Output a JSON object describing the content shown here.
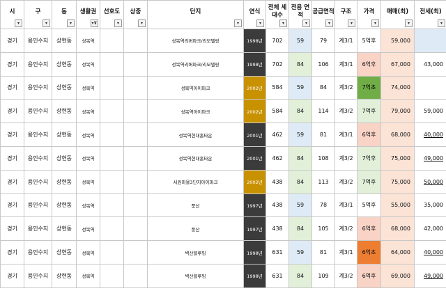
{
  "headers": [
    {
      "label": "시"
    },
    {
      "label": "구"
    },
    {
      "label": "동"
    },
    {
      "label": "생활권"
    },
    {
      "label": "선호도"
    },
    {
      "label": "상중"
    },
    {
      "label": "단지"
    },
    {
      "label": "연식"
    },
    {
      "label": "전체 세대수"
    },
    {
      "label": "전용 면적"
    },
    {
      "label": "공급면적"
    },
    {
      "label": "구조"
    },
    {
      "label": "가격"
    },
    {
      "label": "매매(최)"
    },
    {
      "label": "전세(최)"
    }
  ],
  "filter_icons": {
    "default": "▾",
    "active": "▾⊽"
  },
  "rows": [
    {
      "si": "경기",
      "gu": "용인수지",
      "dong": "상현동",
      "area": "성복역",
      "pref": "",
      "sang": "",
      "complex": "성복역리버파크/리모델링",
      "year": "1998년",
      "year_style": "d",
      "units": "702",
      "excl": "59",
      "excl_style": "b",
      "supply": "79",
      "struct": "계3/1",
      "price": "5억후",
      "price_style": "w",
      "sale": "59,000",
      "jeonse": "",
      "jeonse_style": "b",
      "jeonse_ul": false
    },
    {
      "si": "경기",
      "gu": "용인수지",
      "dong": "상현동",
      "area": "성복역",
      "pref": "",
      "sang": "",
      "complex": "성복역리버파크/리모델링",
      "year": "1998년",
      "year_style": "d",
      "units": "702",
      "excl": "84",
      "excl_style": "g",
      "supply": "106",
      "struct": "계3/1",
      "price": "6억후",
      "price_style": "r",
      "sale": "67,000",
      "jeonse": "43,000",
      "jeonse_style": "n",
      "jeonse_ul": false
    },
    {
      "si": "경기",
      "gu": "용인수지",
      "dong": "상현동",
      "area": "성복역",
      "pref": "",
      "sang": "",
      "complex": "성복역아이파크",
      "year": "2002년",
      "year_style": "g",
      "units": "584",
      "excl": "59",
      "excl_style": "b",
      "supply": "84",
      "struct": "계3/2",
      "price": "7억초",
      "price_style": "gd",
      "sale": "74,000",
      "jeonse": "",
      "jeonse_style": "n",
      "jeonse_ul": false
    },
    {
      "si": "경기",
      "gu": "용인수지",
      "dong": "상현동",
      "area": "성복역",
      "pref": "",
      "sang": "",
      "complex": "성복역아이파크",
      "year": "2002년",
      "year_style": "g",
      "units": "584",
      "excl": "84",
      "excl_style": "g",
      "supply": "114",
      "struct": "계3/2",
      "price": "7억후",
      "price_style": "gl",
      "sale": "79,000",
      "jeonse": "59,000",
      "jeonse_style": "n",
      "jeonse_ul": false
    },
    {
      "si": "경기",
      "gu": "용인수지",
      "dong": "상현동",
      "area": "성복역",
      "pref": "",
      "sang": "",
      "complex": "성복역현대홈타운",
      "year": "2001년",
      "year_style": "d",
      "units": "462",
      "excl": "59",
      "excl_style": "b",
      "supply": "81",
      "struct": "계3/1",
      "price": "6억후",
      "price_style": "r",
      "sale": "68,000",
      "jeonse": "40,000",
      "jeonse_style": "n",
      "jeonse_ul": true
    },
    {
      "si": "경기",
      "gu": "용인수지",
      "dong": "상현동",
      "area": "성복역",
      "pref": "",
      "sang": "",
      "complex": "성복역현대홈타운",
      "year": "2001년",
      "year_style": "d",
      "units": "462",
      "excl": "84",
      "excl_style": "g",
      "supply": "108",
      "struct": "계3/2",
      "price": "7억후",
      "price_style": "gl",
      "sale": "75,000",
      "jeonse": "49,000",
      "jeonse_style": "n",
      "jeonse_ul": true
    },
    {
      "si": "경기",
      "gu": "용인수지",
      "dong": "상현동",
      "area": "성복역",
      "pref": "",
      "sang": "",
      "complex": "서원마을3단지아이파크",
      "year": "2002년",
      "year_style": "g",
      "units": "438",
      "excl": "84",
      "excl_style": "g",
      "supply": "113",
      "struct": "계3/2",
      "price": "7억후",
      "price_style": "gl",
      "sale": "75,000",
      "jeonse": "50,000",
      "jeonse_style": "n",
      "jeonse_ul": true
    },
    {
      "si": "경기",
      "gu": "용인수지",
      "dong": "상현동",
      "area": "성복역",
      "pref": "",
      "sang": "",
      "complex": "풍산",
      "year": "1997년",
      "year_style": "d",
      "units": "438",
      "excl": "59",
      "excl_style": "b",
      "supply": "78",
      "struct": "계3/1",
      "price": "5억후",
      "price_style": "w",
      "sale": "55,000",
      "jeonse": "35,000",
      "jeonse_style": "n",
      "jeonse_ul": false
    },
    {
      "si": "경기",
      "gu": "용인수지",
      "dong": "상현동",
      "area": "성복역",
      "pref": "",
      "sang": "",
      "complex": "풍산",
      "year": "1997년",
      "year_style": "d",
      "units": "438",
      "excl": "84",
      "excl_style": "g",
      "supply": "105",
      "struct": "계3/2",
      "price": "6억후",
      "price_style": "r",
      "sale": "68,000",
      "jeonse": "42,000",
      "jeonse_style": "n",
      "jeonse_ul": false
    },
    {
      "si": "경기",
      "gu": "용인수지",
      "dong": "상현동",
      "area": "성복역",
      "pref": "",
      "sang": "",
      "complex": "벽산블루밍",
      "year": "1998년",
      "year_style": "d",
      "units": "631",
      "excl": "59",
      "excl_style": "b",
      "supply": "81",
      "struct": "계3/1",
      "price": "6억초",
      "price_style": "o",
      "sale": "64,000",
      "jeonse": "40,000",
      "jeonse_style": "n",
      "jeonse_ul": true
    },
    {
      "si": "경기",
      "gu": "용인수지",
      "dong": "상현동",
      "area": "성복역",
      "pref": "",
      "sang": "",
      "complex": "벽산블루밍",
      "year": "1998년",
      "year_style": "d",
      "units": "631",
      "excl": "84",
      "excl_style": "g",
      "supply": "109",
      "struct": "계3/2",
      "price": "6억후",
      "price_style": "r",
      "sale": "69,000",
      "jeonse": "49,000",
      "jeonse_style": "n",
      "jeonse_ul": true
    }
  ]
}
